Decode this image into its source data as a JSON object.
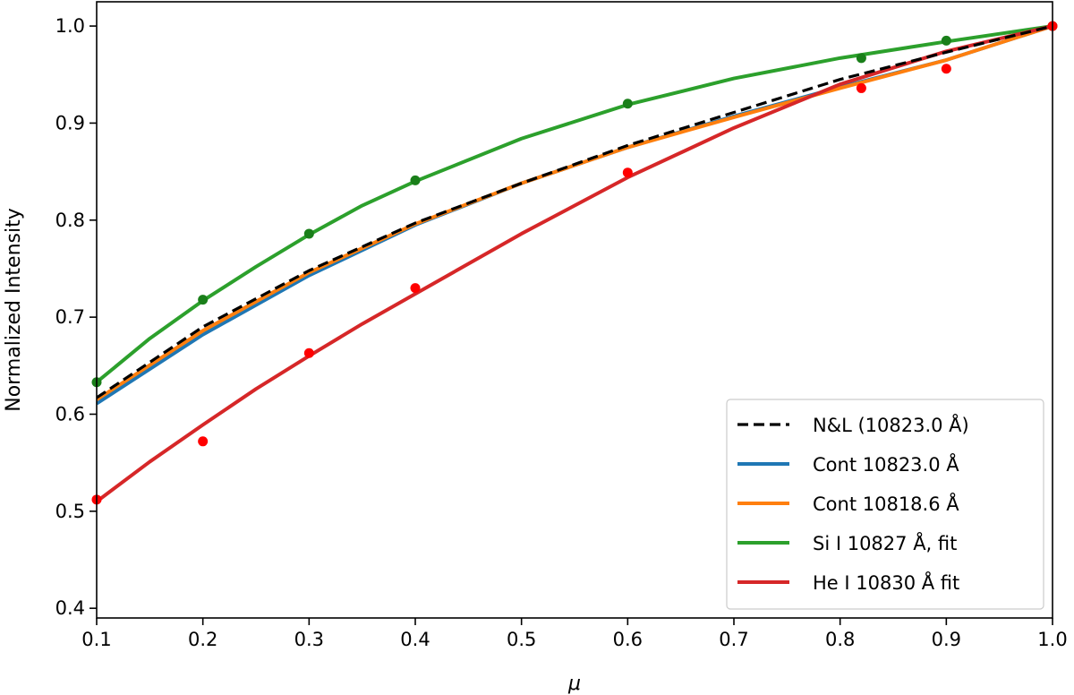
{
  "chart_data": {
    "type": "line",
    "title": "",
    "xlabel": "μ",
    "ylabel": "Normalized Intensity",
    "xlim": [
      0.1,
      1.0
    ],
    "ylim": [
      0.39,
      1.025
    ],
    "xticks": [
      "0.1",
      "0.2",
      "0.3",
      "0.4",
      "0.5",
      "0.6",
      "0.7",
      "0.8",
      "0.9",
      "1.0"
    ],
    "yticks": [
      "0.4",
      "0.5",
      "0.6",
      "0.7",
      "0.8",
      "0.9",
      "1.0"
    ],
    "legend_position": "lower-right",
    "series": [
      {
        "name": "N&L (10823.0 Å)",
        "color": "#000000",
        "style": "dashed",
        "x": [
          0.1,
          0.2,
          0.3,
          0.4,
          0.5,
          0.6,
          0.7,
          0.8,
          0.9,
          1.0
        ],
        "y": [
          0.617,
          0.69,
          0.748,
          0.797,
          0.838,
          0.877,
          0.911,
          0.945,
          0.973,
          1.0
        ]
      },
      {
        "name": "Cont 10823.0 Å",
        "color": "#1f77b4",
        "style": "solid",
        "x": [
          0.1,
          0.2,
          0.3,
          0.4,
          0.5,
          0.6,
          0.7,
          0.8,
          0.9,
          1.0
        ],
        "y": [
          0.611,
          0.682,
          0.743,
          0.795,
          0.838,
          0.875,
          0.907,
          0.937,
          0.965,
          1.0
        ]
      },
      {
        "name": "Cont 10818.6 Å",
        "color": "#ff7f0e",
        "style": "solid",
        "x": [
          0.1,
          0.2,
          0.3,
          0.4,
          0.5,
          0.6,
          0.7,
          0.8,
          0.9,
          1.0
        ],
        "y": [
          0.615,
          0.686,
          0.746,
          0.796,
          0.838,
          0.875,
          0.906,
          0.936,
          0.965,
          1.0
        ]
      },
      {
        "name": "Si I 10827 Å, fit",
        "color": "#2ca02c",
        "style": "solid",
        "x": [
          0.1,
          0.15,
          0.2,
          0.25,
          0.3,
          0.35,
          0.4,
          0.5,
          0.6,
          0.7,
          0.8,
          0.9,
          1.0
        ],
        "y": [
          0.633,
          0.678,
          0.717,
          0.752,
          0.785,
          0.815,
          0.84,
          0.884,
          0.919,
          0.946,
          0.967,
          0.984,
          1.0
        ],
        "points": {
          "color": "#1a7f1a",
          "x": [
            0.1,
            0.2,
            0.3,
            0.4,
            0.6,
            0.82,
            0.9,
            1.0
          ],
          "y": [
            0.633,
            0.718,
            0.786,
            0.841,
            0.92,
            0.967,
            0.985,
            1.0
          ]
        }
      },
      {
        "name": "He I 10830 Å fit",
        "color": "#d62728",
        "style": "solid",
        "x": [
          0.1,
          0.15,
          0.2,
          0.25,
          0.3,
          0.35,
          0.4,
          0.5,
          0.6,
          0.7,
          0.8,
          0.9,
          1.0
        ],
        "y": [
          0.51,
          0.551,
          0.589,
          0.626,
          0.66,
          0.693,
          0.724,
          0.786,
          0.844,
          0.895,
          0.94,
          0.974,
          1.0
        ],
        "points": {
          "color": "#ff0000",
          "x": [
            0.1,
            0.2,
            0.3,
            0.4,
            0.6,
            0.82,
            0.9,
            1.0
          ],
          "y": [
            0.512,
            0.572,
            0.663,
            0.73,
            0.849,
            0.936,
            0.956,
            1.0
          ]
        }
      }
    ]
  }
}
